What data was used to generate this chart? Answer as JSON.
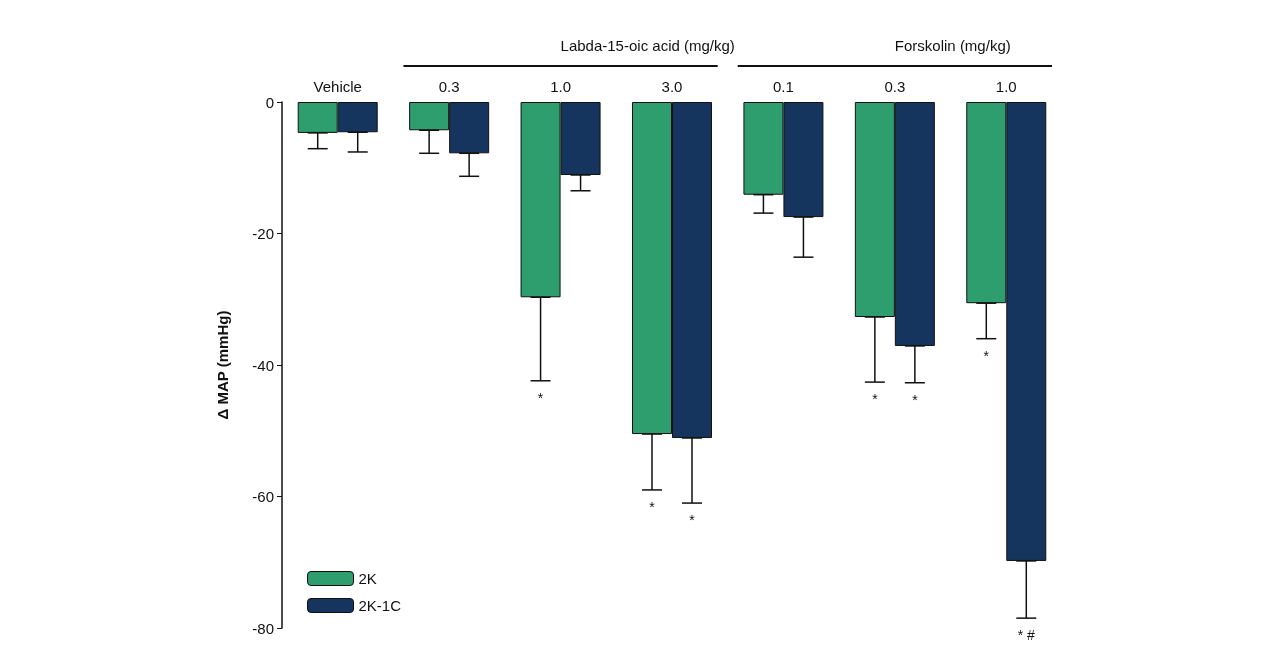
{
  "chart_data": {
    "type": "bar",
    "ylabel": "Δ MAP (mmHg)",
    "categories": [
      "Vehicle",
      "0.3",
      "1.0",
      "3.0",
      "0.1",
      "0.3",
      "1.0"
    ],
    "series": [
      {
        "name": "2K",
        "color": "#2e9e6e",
        "values": [
          -4.7,
          -4.3,
          -29.7,
          -50.5,
          -14.1,
          -32.7,
          -30.6
        ],
        "errors": [
          [
            -7.1,
            -4.7
          ],
          [
            -7.8,
            -4.3
          ],
          [
            -42.4,
            -29.7
          ],
          [
            -59.0,
            -50.5
          ],
          [
            -16.9,
            -14.1
          ],
          [
            -42.6,
            -32.7
          ],
          [
            -36.0,
            -30.6
          ]
        ]
      },
      {
        "name": "2K-1C",
        "color": "#15355e",
        "values": [
          -4.6,
          -7.8,
          -11.1,
          -51.1,
          -17.5,
          -37.1,
          -69.8
        ],
        "errors": [
          [
            -7.6,
            -4.6
          ],
          [
            -11.3,
            -7.8
          ],
          [
            -13.5,
            -11.1
          ],
          [
            -61.0,
            -51.1
          ],
          [
            -23.6,
            -17.5
          ],
          [
            -42.7,
            -37.1
          ],
          [
            -78.5,
            -69.8
          ]
        ]
      }
    ],
    "annotations": [
      "Labda-15-oic acid (mg/kg)",
      "Forskolin (mg/kg)",
      "*",
      "*",
      "*",
      "*",
      "*",
      "*",
      "* #"
    ],
    "ylim": [
      -80,
      0
    ],
    "yticks": [
      -80,
      -60,
      -40,
      -20,
      0
    ],
    "grid": false,
    "legend": "bottom left"
  }
}
